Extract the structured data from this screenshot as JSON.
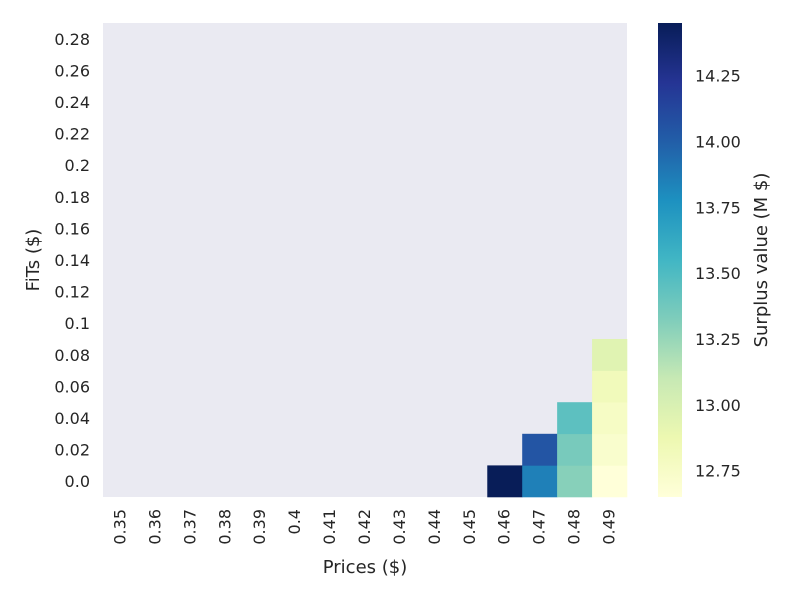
{
  "chart_data": {
    "type": "heatmap",
    "xlabel": "Prices ($)",
    "ylabel": "FiTs ($)",
    "colorbar_label": "Surplus value (M $)",
    "x_categories": [
      "0.35",
      "0.36",
      "0.37",
      "0.38",
      "0.39",
      "0.4",
      "0.41",
      "0.42",
      "0.43",
      "0.44",
      "0.45",
      "0.46",
      "0.47",
      "0.48",
      "0.49"
    ],
    "y_categories": [
      "0.0",
      "0.02",
      "0.04",
      "0.06",
      "0.08",
      "0.1",
      "0.12",
      "0.14",
      "0.16",
      "0.18",
      "0.2",
      "0.22",
      "0.24",
      "0.26",
      "0.28"
    ],
    "cells": [
      {
        "x": "0.46",
        "y": "0.0",
        "value": 14.45
      },
      {
        "x": "0.47",
        "y": "0.0",
        "value": 13.85
      },
      {
        "x": "0.47",
        "y": "0.02",
        "value": 14.05
      },
      {
        "x": "0.48",
        "y": "0.0",
        "value": 13.3
      },
      {
        "x": "0.48",
        "y": "0.02",
        "value": 13.35
      },
      {
        "x": "0.48",
        "y": "0.04",
        "value": 13.45
      },
      {
        "x": "0.49",
        "y": "0.0",
        "value": 12.65
      },
      {
        "x": "0.49",
        "y": "0.02",
        "value": 12.72
      },
      {
        "x": "0.49",
        "y": "0.04",
        "value": 12.76
      },
      {
        "x": "0.49",
        "y": "0.06",
        "value": 12.82
      },
      {
        "x": "0.49",
        "y": "0.08",
        "value": 12.95
      }
    ],
    "colorbar": {
      "min": 12.65,
      "max": 14.45,
      "ticks": [
        "12.75",
        "13.00",
        "13.25",
        "13.50",
        "13.75",
        "14.00",
        "14.25"
      ],
      "colormap": "YlGnBu"
    },
    "colors": {
      "background": "#eaeaf2",
      "text": "#262626"
    }
  }
}
